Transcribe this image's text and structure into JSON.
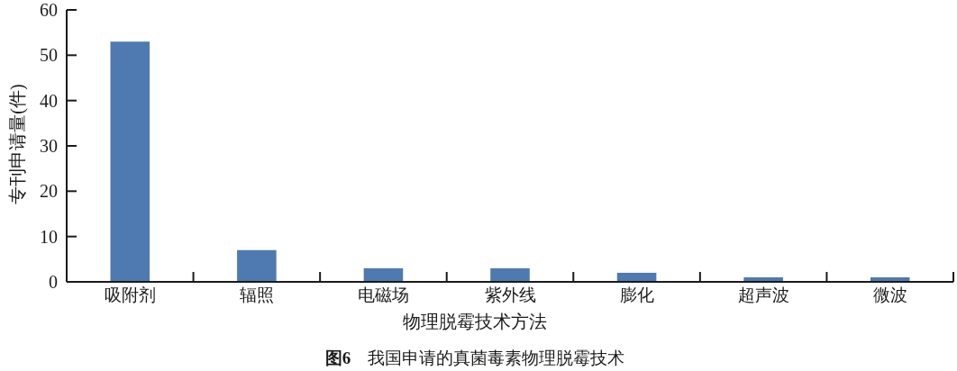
{
  "chart_data": {
    "type": "bar",
    "title": "**图6**　我国申请的真菌毒素物理脱霉技术",
    "xlabel": "物理脱霉技术方法",
    "ylabel": "专刊申请量(件)",
    "categories": [
      "吸附剂",
      "辐照",
      "电磁场",
      "紫外线",
      "膨化",
      "超声波",
      "微波"
    ],
    "values": [
      53,
      7,
      3,
      3,
      2,
      1,
      1
    ],
    "color": "#4e7ab1",
    "ylim": [
      0,
      60
    ],
    "yticks": [
      0,
      10,
      20,
      30,
      40,
      50,
      60
    ]
  }
}
